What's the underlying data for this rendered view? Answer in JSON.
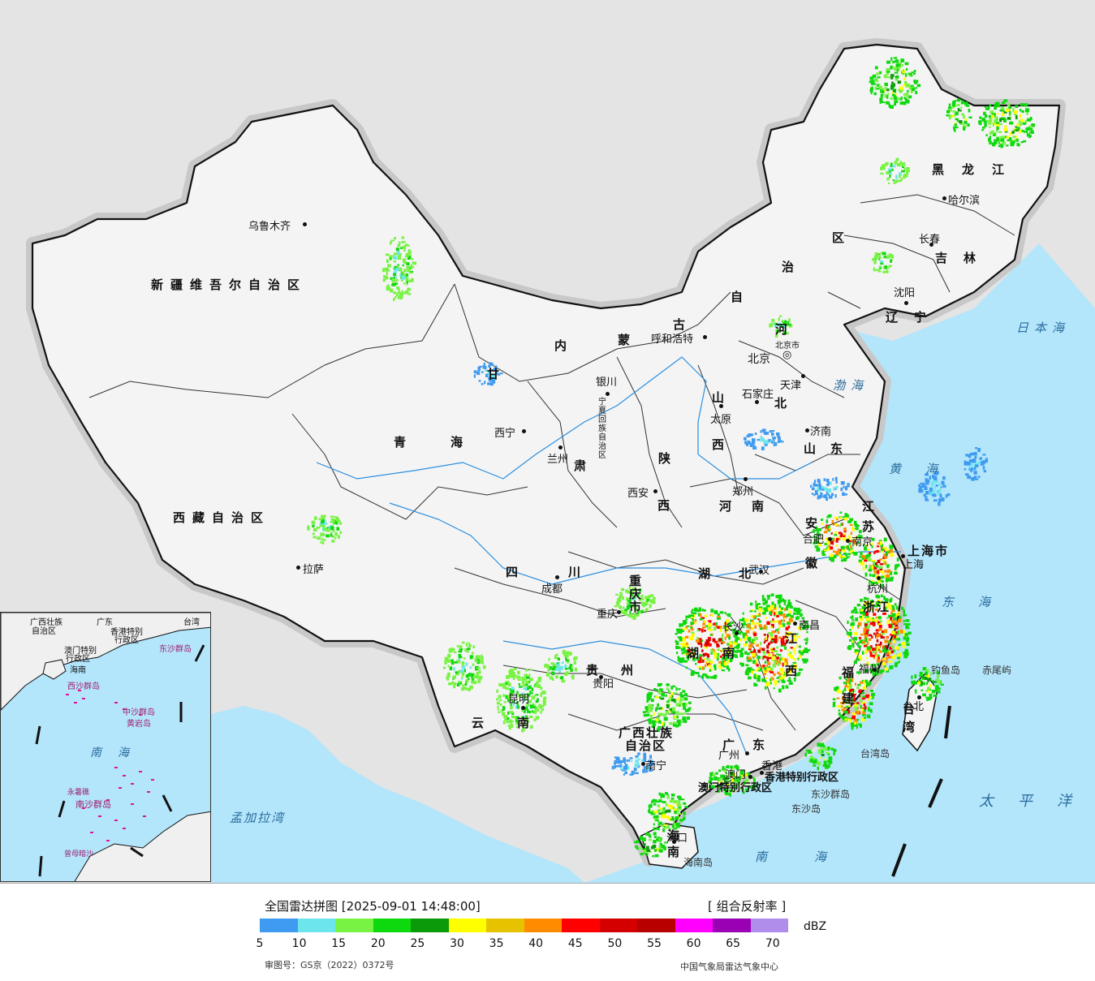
{
  "legend": {
    "title": "全国雷达拼图 [2025-09-01 14:48:00]",
    "product": "[ 组合反射率 ]",
    "unit": "dBZ",
    "ticks": [
      "5",
      "10",
      "15",
      "20",
      "25",
      "30",
      "35",
      "40",
      "45",
      "50",
      "55",
      "60",
      "65",
      "70"
    ],
    "colors": [
      "#3f9bf0",
      "#6ce6ec",
      "#78f343",
      "#0ed80e",
      "#0a9a0a",
      "#ffff00",
      "#e6c200",
      "#ff8c00",
      "#ff0000",
      "#d40000",
      "#b80000",
      "#ff00ff",
      "#9a00b4",
      "#b08ceb"
    ],
    "review_no": "审图号：GS京（2022）0372号",
    "source": "中国气象局雷达气象中心"
  },
  "provinces": [
    {
      "name": "新疆维吾尔自治区"
    },
    {
      "name": "西藏自治区"
    },
    {
      "name": "青海"
    },
    {
      "name": "甘"
    },
    {
      "name": "肃"
    },
    {
      "name": "内"
    },
    {
      "name": "蒙"
    },
    {
      "name": "古"
    },
    {
      "name": "自"
    },
    {
      "name": "治"
    },
    {
      "name": "区"
    },
    {
      "name": "黑龙江"
    },
    {
      "name": "吉林"
    },
    {
      "name": "辽宁"
    },
    {
      "name": "河"
    },
    {
      "name": "北"
    },
    {
      "name": "山"
    },
    {
      "name": "西"
    },
    {
      "name": "山东"
    },
    {
      "name": "河南"
    },
    {
      "name": "陕"
    },
    {
      "name": "西"
    },
    {
      "name": "四川"
    },
    {
      "name": "重庆市"
    },
    {
      "name": "湖北"
    },
    {
      "name": "安"
    },
    {
      "name": "徽"
    },
    {
      "name": "江"
    },
    {
      "name": "苏"
    },
    {
      "name": "上海市"
    },
    {
      "name": "浙江"
    },
    {
      "name": "江"
    },
    {
      "name": "西"
    },
    {
      "name": "湖"
    },
    {
      "name": "南"
    },
    {
      "name": "贵州"
    },
    {
      "name": "云"
    },
    {
      "name": "南"
    },
    {
      "name": "广西壮族"
    },
    {
      "name": "自治区"
    },
    {
      "name": "广东"
    },
    {
      "name": "福"
    },
    {
      "name": "建"
    },
    {
      "name": "台湾"
    },
    {
      "name": "海南"
    },
    {
      "name": "宁夏回族自治区"
    },
    {
      "name": "香港特别行政区"
    },
    {
      "name": "澳门特别行政区"
    }
  ],
  "cities": [
    {
      "name": "乌鲁木齐"
    },
    {
      "name": "拉萨"
    },
    {
      "name": "西宁"
    },
    {
      "name": "兰州"
    },
    {
      "name": "银川"
    },
    {
      "name": "呼和浩特"
    },
    {
      "name": "北京"
    },
    {
      "name": "天津"
    },
    {
      "name": "石家庄"
    },
    {
      "name": "太原"
    },
    {
      "name": "济南"
    },
    {
      "name": "郑州"
    },
    {
      "name": "西安"
    },
    {
      "name": "成都"
    },
    {
      "name": "重庆"
    },
    {
      "name": "武汉"
    },
    {
      "name": "合肥"
    },
    {
      "name": "南京"
    },
    {
      "name": "上海"
    },
    {
      "name": "杭州"
    },
    {
      "name": "南昌"
    },
    {
      "name": "长沙"
    },
    {
      "name": "贵阳"
    },
    {
      "name": "昆明"
    },
    {
      "name": "南宁"
    },
    {
      "name": "广州"
    },
    {
      "name": "香港"
    },
    {
      "name": "澳门"
    },
    {
      "name": "海口"
    },
    {
      "name": "福州"
    },
    {
      "name": "台北"
    },
    {
      "name": "沈阳"
    },
    {
      "name": "长春"
    },
    {
      "name": "哈尔滨"
    },
    {
      "name": "北京市"
    }
  ],
  "seas": [
    {
      "name": "日本海"
    },
    {
      "name": "渤海"
    },
    {
      "name": "黄海"
    },
    {
      "name": "东海"
    },
    {
      "name": "太平洋"
    },
    {
      "name": "南海"
    },
    {
      "name": "孟加拉湾"
    }
  ],
  "islands": [
    {
      "name": "钓鱼岛"
    },
    {
      "name": "赤尾屿"
    },
    {
      "name": "台湾岛"
    },
    {
      "name": "东沙群岛"
    },
    {
      "name": "东沙岛"
    },
    {
      "name": "海南岛"
    }
  ],
  "inset": {
    "labels": [
      "广西壮族",
      "自治区",
      "广东",
      "台湾",
      "香港特别",
      "行政区",
      "东沙群岛",
      "澳门特别",
      "行政区",
      "海南",
      "西沙群岛",
      "中沙群岛",
      "黄岩岛",
      "南海",
      "南沙群岛",
      "曾母暗沙",
      "永暑礁"
    ]
  }
}
